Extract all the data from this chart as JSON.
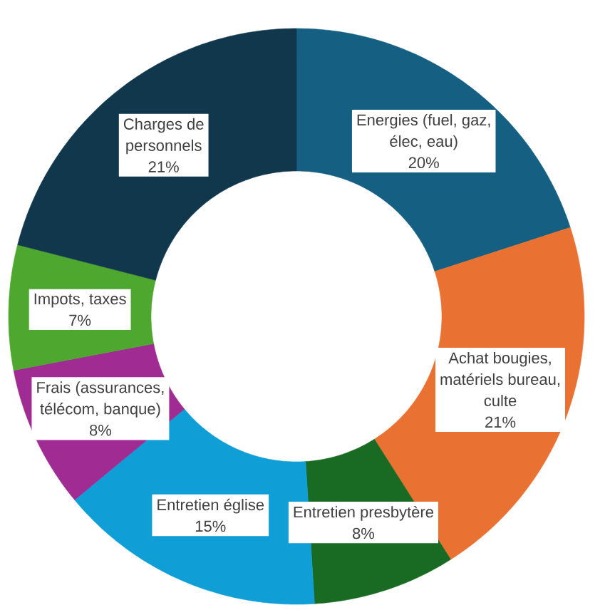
{
  "chart_data": {
    "type": "donut",
    "categories": [
      "Energies (fuel, gaz, élec, eau)",
      "Achat bougies, matériels bureau, culte",
      "Entretien presbytère",
      "Entretien église",
      "Frais (assurances, télécom, banque)",
      "Impots, taxes",
      "Charges de personnels"
    ],
    "values": [
      20,
      21,
      8,
      15,
      8,
      7,
      21
    ],
    "value_labels": [
      "20%",
      "21%",
      "8%",
      "15%",
      "8%",
      "7%",
      "21%"
    ],
    "colors": [
      "#156082",
      "#e97132",
      "#196b24",
      "#0f9ed5",
      "#a02b93",
      "#4ea72e",
      "#10374b"
    ]
  }
}
